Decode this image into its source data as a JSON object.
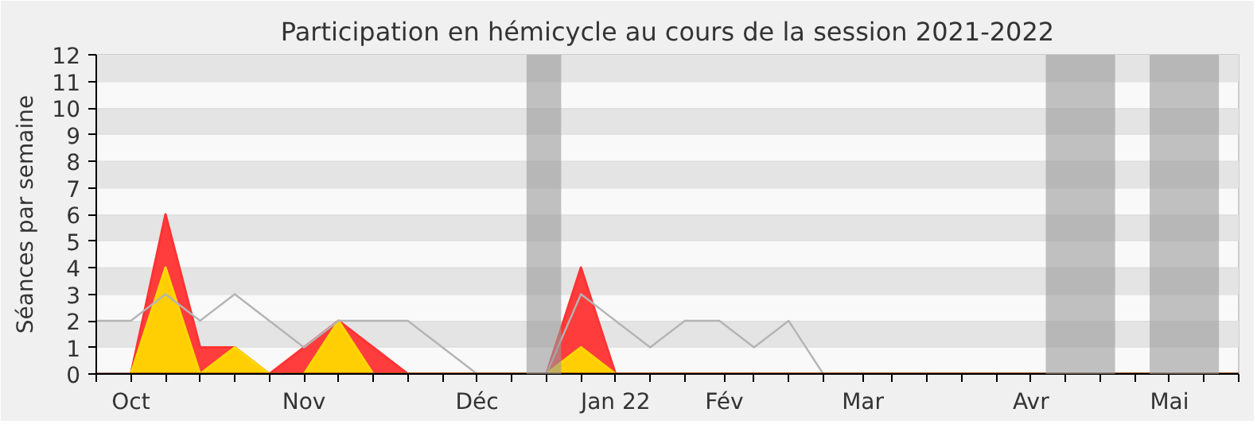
{
  "chart_data": {
    "type": "area",
    "title": "Participation en hémicycle au cours de la session 2021-2022",
    "ylabel": "Séances par semaine",
    "x": [
      "2021-09-27",
      "2021-10-04",
      "2021-10-11",
      "2021-10-18",
      "2021-10-25",
      "2021-11-01",
      "2021-11-08",
      "2021-11-15",
      "2021-11-22",
      "2021-11-29",
      "2021-12-06",
      "2021-12-13",
      "2021-12-20",
      "2021-12-27",
      "2022-01-03",
      "2022-01-10",
      "2022-01-17",
      "2022-01-24",
      "2022-01-31",
      "2022-02-07",
      "2022-02-14",
      "2022-02-21",
      "2022-02-28",
      "2022-03-07",
      "2022-03-14",
      "2022-03-21",
      "2022-03-28",
      "2022-04-04",
      "2022-04-11",
      "2022-04-18",
      "2022-04-25",
      "2022-05-02",
      "2022-05-09",
      "2022-05-16"
    ],
    "series": [
      {
        "color": "#ff3333",
        "values": [
          null,
          0,
          6,
          1,
          1,
          0,
          1,
          2,
          1,
          0,
          0,
          0,
          0,
          0,
          4,
          0,
          0,
          0,
          0,
          0,
          0,
          0,
          0,
          0,
          0,
          0,
          0,
          0,
          0,
          0,
          0,
          0,
          0,
          0
        ]
      },
      {
        "color": "#ffd700",
        "values": [
          null,
          0,
          4,
          0,
          1,
          0,
          0,
          2,
          0,
          0,
          0,
          0,
          0,
          0,
          1,
          0,
          0,
          0,
          0,
          0,
          0,
          0,
          0,
          0,
          0,
          0,
          0,
          0,
          0,
          0,
          0,
          0,
          0,
          0
        ]
      },
      {
        "type": "line",
        "color": "#b4b4b4",
        "values": [
          2,
          2,
          3,
          2,
          3,
          2,
          1,
          2,
          2,
          2,
          1,
          0,
          0,
          0,
          3,
          2,
          1,
          2,
          2,
          1,
          2,
          0,
          0,
          0,
          0,
          0,
          0,
          0,
          0,
          0,
          0,
          0,
          0,
          0
        ]
      }
    ],
    "xlim": [
      "2021-09-27",
      "2022-05-16"
    ],
    "xticks": [
      {
        "value": "2021-09-27",
        "label": null
      },
      {
        "value": "2021-10-04",
        "label": "Oct"
      },
      {
        "value": "2021-10-11",
        "label": null
      },
      {
        "value": "2021-10-18",
        "label": null
      },
      {
        "value": "2021-10-25",
        "label": null
      },
      {
        "value": "2021-11-01",
        "label": null
      },
      {
        "value": "2021-11-08",
        "label": "Nov"
      },
      {
        "value": "2021-11-15",
        "label": null
      },
      {
        "value": "2021-11-22",
        "label": null
      },
      {
        "value": "2021-11-29",
        "label": null
      },
      {
        "value": "2021-12-06",
        "label": null
      },
      {
        "value": "2021-12-13",
        "label": "Déc"
      },
      {
        "value": "2021-12-20",
        "label": null
      },
      {
        "value": "2021-12-27",
        "label": null
      },
      {
        "value": "2022-01-03",
        "label": null
      },
      {
        "value": "2022-01-10",
        "label": "Jan 22"
      },
      {
        "value": "2022-01-17",
        "label": null
      },
      {
        "value": "2022-01-24",
        "label": null
      },
      {
        "value": "2022-02-01",
        "label": "Fév"
      },
      {
        "value": "2022-02-07",
        "label": null
      },
      {
        "value": "2022-02-14",
        "label": null
      },
      {
        "value": "2022-02-21",
        "label": null
      },
      {
        "value": "2022-03-01",
        "label": "Mar"
      },
      {
        "value": "2022-03-07",
        "label": null
      },
      {
        "value": "2022-03-14",
        "label": null
      },
      {
        "value": "2022-03-21",
        "label": null
      },
      {
        "value": "2022-03-28",
        "label": null
      },
      {
        "value": "2022-04-04",
        "label": "Avr"
      },
      {
        "value": "2022-04-11",
        "label": null
      },
      {
        "value": "2022-04-18",
        "label": null
      },
      {
        "value": "2022-04-25",
        "label": null
      },
      {
        "value": "2022-05-02",
        "label": "Mai"
      },
      {
        "value": "2022-05-09",
        "label": null
      },
      {
        "value": "2022-05-16",
        "label": null
      }
    ],
    "ylim": [
      0,
      12
    ],
    "yticks": [
      0,
      1,
      2,
      3,
      4,
      5,
      6,
      7,
      8,
      9,
      10,
      11,
      12
    ],
    "bands": [
      {
        "axis": "x",
        "from": "2021-12-23",
        "to": "2021-12-30",
        "color": "#999999"
      },
      {
        "axis": "x",
        "from": "2022-04-07",
        "to": "2022-04-21",
        "color": "#999999"
      },
      {
        "axis": "x",
        "from": "2022-04-28",
        "to": "2022-05-12",
        "color": "#999999"
      }
    ],
    "grid": "y"
  }
}
